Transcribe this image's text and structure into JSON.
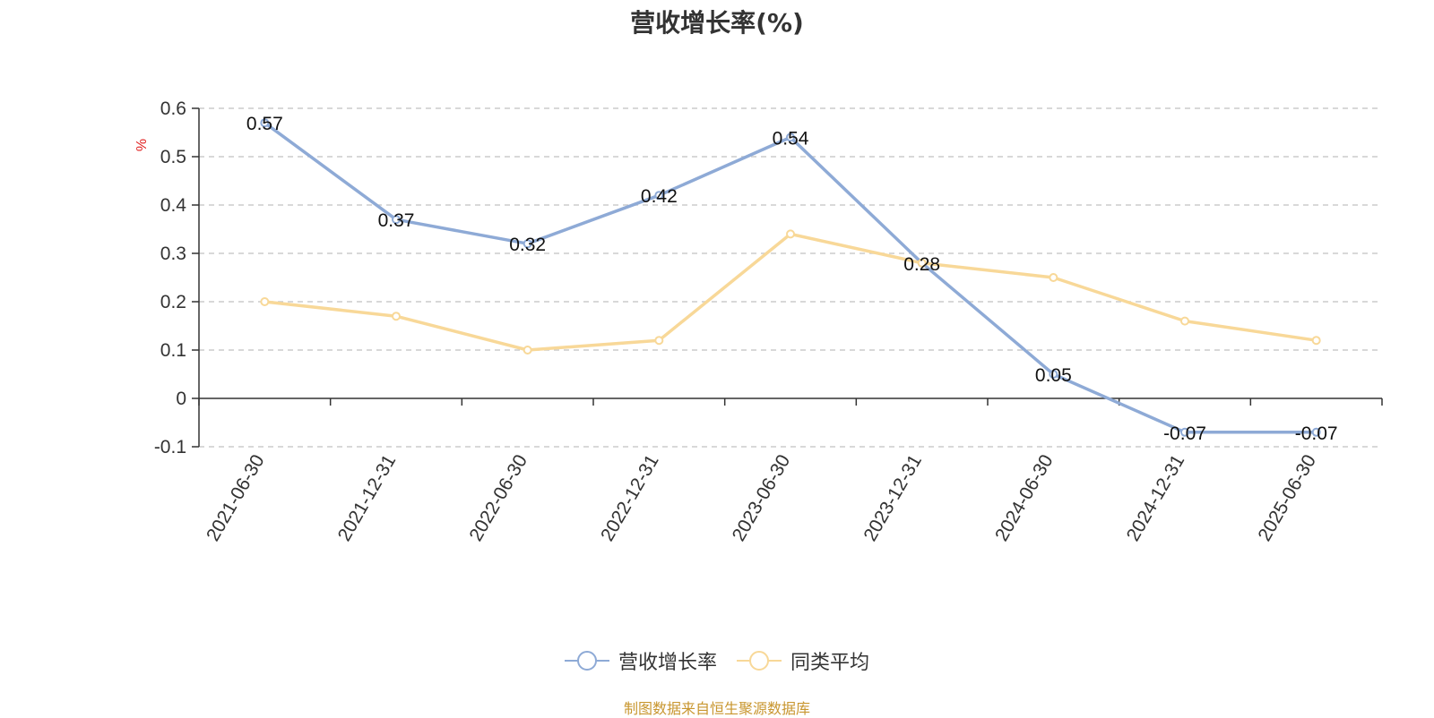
{
  "chart_data": {
    "type": "line",
    "title": "营收增长率(%)",
    "ylabel": "%",
    "xlabel": "",
    "categories": [
      "2021-06-30",
      "2021-12-31",
      "2022-06-30",
      "2022-12-31",
      "2023-06-30",
      "2023-12-31",
      "2024-06-30",
      "2024-12-31",
      "2025-06-30"
    ],
    "ylim": [
      -0.1,
      0.6
    ],
    "yticks": [
      -0.1,
      0,
      0.1,
      0.2,
      0.3,
      0.4,
      0.5,
      0.6
    ],
    "ytick_labels": [
      "-0.1",
      "0",
      "0.1",
      "0.2",
      "0.3",
      "0.4",
      "0.5",
      "0.6"
    ],
    "grid": true,
    "legend_position": "bottom-center",
    "series": [
      {
        "name": "营收增长率",
        "color": "#8eaad6",
        "values": [
          0.57,
          0.37,
          0.32,
          0.42,
          0.54,
          0.28,
          0.05,
          -0.07,
          -0.07
        ],
        "labels": [
          "0.57",
          "0.37",
          "0.32",
          "0.42",
          "0.54",
          "0.28",
          "0.05",
          "-0.07",
          "-0.07"
        ]
      },
      {
        "name": "同类平均",
        "color": "#f8d898",
        "values": [
          0.2,
          0.17,
          0.1,
          0.12,
          0.34,
          0.28,
          0.25,
          0.16,
          0.12
        ]
      }
    ]
  },
  "source_text": "制图数据来自恒生聚源数据库"
}
